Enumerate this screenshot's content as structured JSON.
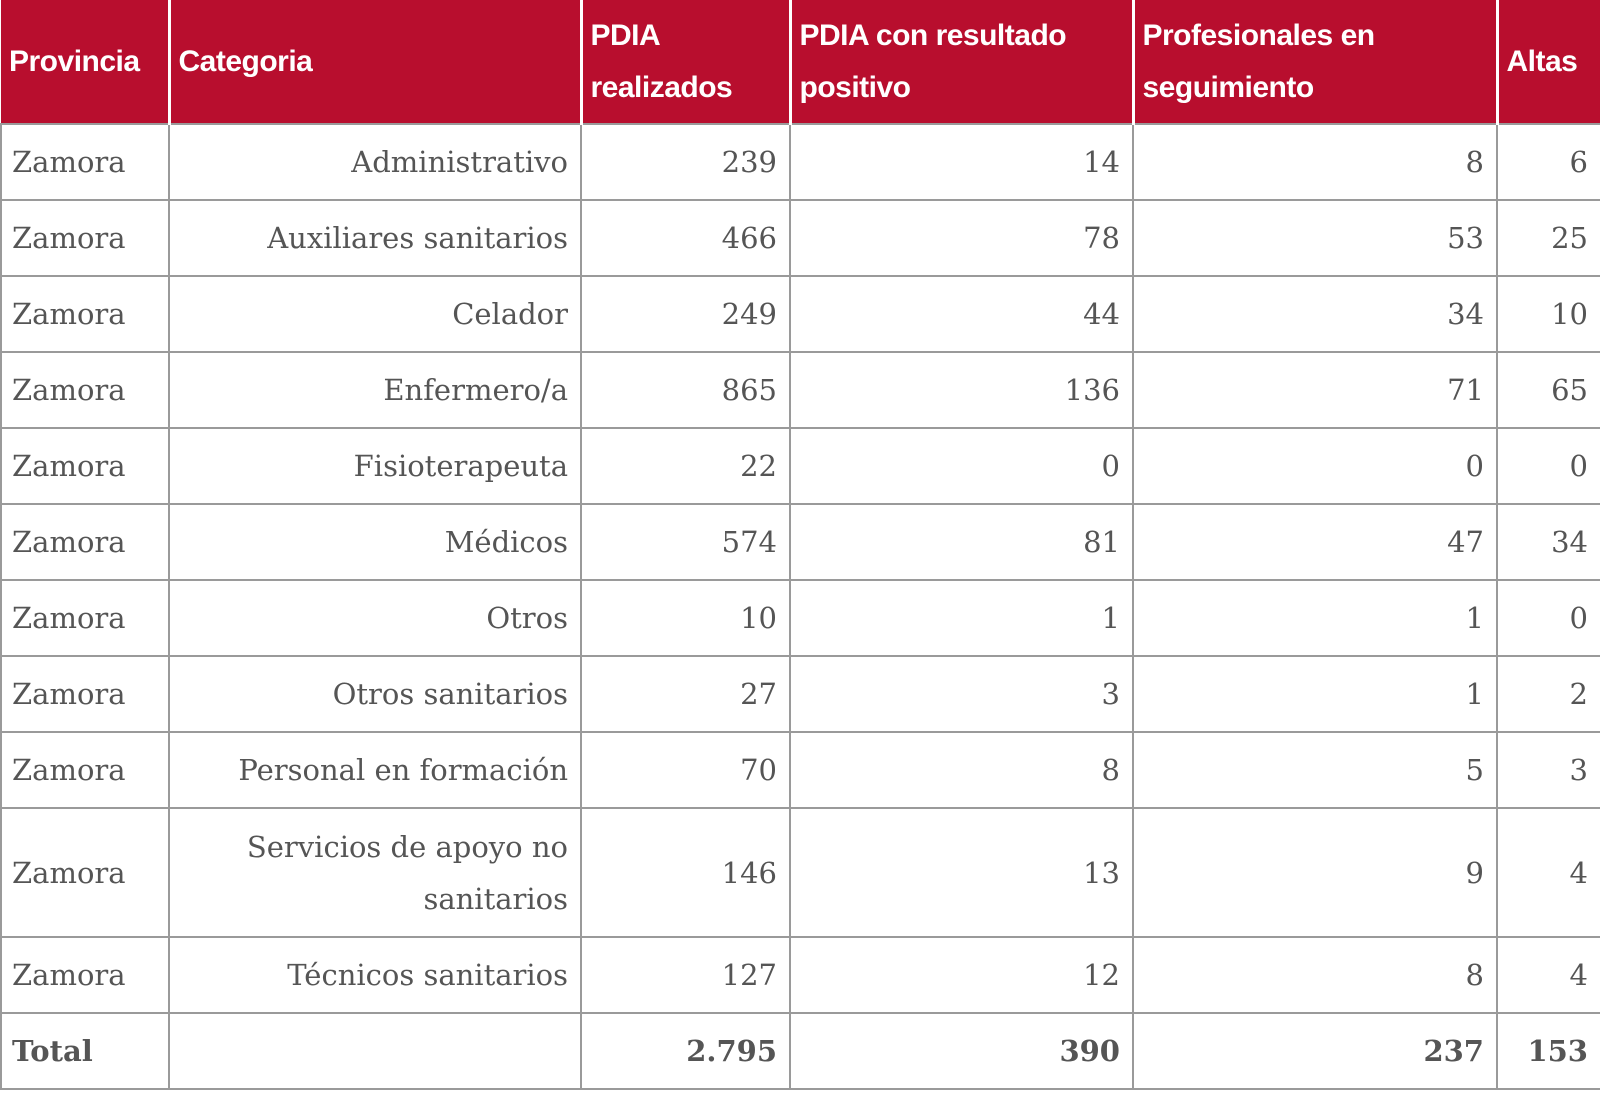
{
  "headers": [
    "Provincia",
    "Categoria",
    "PDIA realizados",
    "PDIA con resultado positivo",
    "Profesionales en seguimiento",
    "Altas"
  ],
  "rows": [
    {
      "provincia": "Zamora",
      "categoria": "Administrativo",
      "pdia": "239",
      "positivo": "14",
      "seguimiento": "8",
      "altas": "6"
    },
    {
      "provincia": "Zamora",
      "categoria": "Auxiliares sanitarios",
      "pdia": "466",
      "positivo": "78",
      "seguimiento": "53",
      "altas": "25"
    },
    {
      "provincia": "Zamora",
      "categoria": "Celador",
      "pdia": "249",
      "positivo": "44",
      "seguimiento": "34",
      "altas": "10"
    },
    {
      "provincia": "Zamora",
      "categoria": "Enfermero/a",
      "pdia": "865",
      "positivo": "136",
      "seguimiento": "71",
      "altas": "65"
    },
    {
      "provincia": "Zamora",
      "categoria": "Fisioterapeuta",
      "pdia": "22",
      "positivo": "0",
      "seguimiento": "0",
      "altas": "0"
    },
    {
      "provincia": "Zamora",
      "categoria": "Médicos",
      "pdia": "574",
      "positivo": "81",
      "seguimiento": "47",
      "altas": "34"
    },
    {
      "provincia": "Zamora",
      "categoria": "Otros",
      "pdia": "10",
      "positivo": "1",
      "seguimiento": "1",
      "altas": "0"
    },
    {
      "provincia": "Zamora",
      "categoria": "Otros sanitarios",
      "pdia": "27",
      "positivo": "3",
      "seguimiento": "1",
      "altas": "2"
    },
    {
      "provincia": "Zamora",
      "categoria": "Personal en formación",
      "pdia": "70",
      "positivo": "8",
      "seguimiento": "5",
      "altas": "3"
    },
    {
      "provincia": "Zamora",
      "categoria": "Servicios de apoyo no sanitarios",
      "pdia": "146",
      "positivo": "13",
      "seguimiento": "9",
      "altas": "4"
    },
    {
      "provincia": "Zamora",
      "categoria": "Técnicos sanitarios",
      "pdia": "127",
      "positivo": "12",
      "seguimiento": "8",
      "altas": "4"
    }
  ],
  "total": {
    "label": "Total",
    "categoria": "",
    "pdia": "2.795",
    "positivo": "390",
    "seguimiento": "237",
    "altas": "153"
  },
  "colors": {
    "header_bg": "#b80e2e",
    "header_text": "#ffffff",
    "body_text": "#555555",
    "border": "#9a9a9a"
  }
}
